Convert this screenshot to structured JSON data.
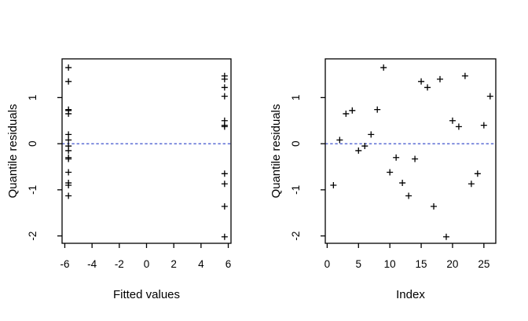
{
  "figure": {
    "background": "#ffffff",
    "colors": {
      "points": "#000000",
      "axis": "#000000",
      "reference_line": "#3c50cc",
      "text": "#000000"
    }
  },
  "chart_data": [
    {
      "id": "residuals-vs-fitted",
      "type": "scatter",
      "marker": "plus",
      "title": "",
      "xlabel": "Fitted values",
      "ylabel": "Quantile residuals",
      "xlim": [
        -6.2,
        6.2
      ],
      "ylim": [
        -2.16,
        1.84
      ],
      "xticks": [
        -6,
        -4,
        -2,
        0,
        2,
        4,
        6
      ],
      "yticks": [
        -2,
        -1,
        0,
        1
      ],
      "grid": false,
      "legend": false,
      "ref_line_y": 0,
      "x": [
        -5.73,
        -5.73,
        -5.73,
        -5.73,
        -5.73,
        -5.73,
        -5.73,
        -5.73,
        -5.73,
        -5.73,
        -5.73,
        -5.73,
        -5.73,
        -5.73,
        -5.73,
        5.73,
        5.73,
        5.73,
        5.73,
        5.73,
        5.73,
        5.73,
        5.73,
        5.73,
        5.73,
        5.73
      ],
      "y": [
        -0.9,
        0.08,
        0.65,
        0.72,
        -0.15,
        -0.05,
        0.2,
        0.74,
        1.65,
        -0.62,
        -0.3,
        -0.85,
        -1.13,
        -0.33,
        1.35,
        1.22,
        -1.36,
        1.4,
        -2.02,
        0.5,
        0.37,
        1.47,
        -0.87,
        -0.65,
        0.4,
        1.03
      ]
    },
    {
      "id": "residuals-vs-index",
      "type": "scatter",
      "marker": "plus",
      "title": "",
      "xlabel": "Index",
      "ylabel": "Quantile residuals",
      "xlim": [
        -0.3,
        26.9
      ],
      "ylim": [
        -2.16,
        1.84
      ],
      "xticks": [
        0,
        5,
        10,
        15,
        20,
        25
      ],
      "yticks": [
        -2,
        -1,
        0,
        1
      ],
      "grid": false,
      "legend": false,
      "ref_line_y": 0,
      "x": [
        1,
        2,
        3,
        4,
        5,
        6,
        7,
        8,
        9,
        10,
        11,
        12,
        13,
        14,
        15,
        16,
        17,
        18,
        19,
        20,
        21,
        22,
        23,
        24,
        25,
        26
      ],
      "y": [
        -0.9,
        0.08,
        0.65,
        0.72,
        -0.15,
        -0.05,
        0.2,
        0.74,
        1.65,
        -0.62,
        -0.3,
        -0.85,
        -1.13,
        -0.33,
        1.35,
        1.22,
        -1.36,
        1.4,
        -2.02,
        0.5,
        0.37,
        1.47,
        -0.87,
        -0.65,
        0.4,
        1.03
      ]
    }
  ]
}
